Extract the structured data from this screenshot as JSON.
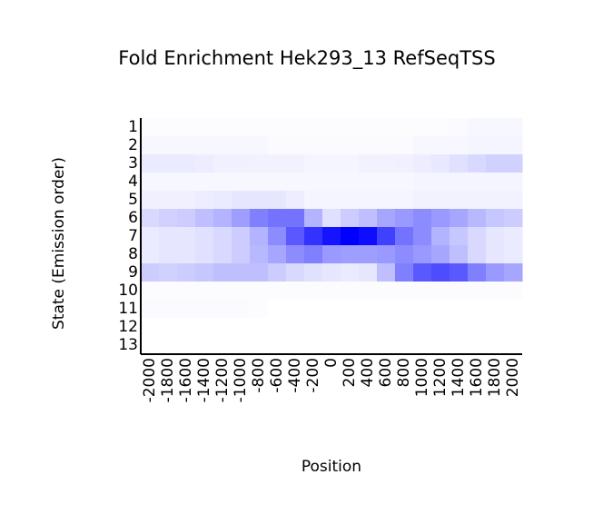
{
  "chart_data": {
    "type": "heatmap",
    "title": "Fold Enrichment Hek293_13 RefSeqTSS",
    "x_label": "Position",
    "y_label": "State (Emission order)",
    "color": "#0000ff",
    "categories": [
      -2000,
      -1800,
      -1600,
      -1400,
      -1200,
      -1000,
      -800,
      -600,
      -400,
      -200,
      0,
      200,
      400,
      600,
      800,
      1000,
      1200,
      1400,
      1600,
      1800,
      2000
    ],
    "rows": [
      1,
      2,
      3,
      4,
      5,
      6,
      7,
      8,
      9,
      10,
      11,
      12,
      13
    ],
    "values": [
      [
        0.01,
        0.01,
        0.01,
        0.01,
        0.01,
        0.01,
        0.01,
        0.01,
        0.01,
        0.01,
        0.01,
        0.01,
        0.01,
        0.01,
        0.01,
        0.01,
        0.01,
        0.02,
        0.03,
        0.03,
        0.03
      ],
      [
        0.03,
        0.03,
        0.03,
        0.03,
        0.03,
        0.03,
        0.03,
        0.02,
        0.02,
        0.02,
        0.02,
        0.02,
        0.02,
        0.02,
        0.02,
        0.03,
        0.03,
        0.03,
        0.04,
        0.04,
        0.04
      ],
      [
        0.08,
        0.08,
        0.08,
        0.07,
        0.06,
        0.06,
        0.05,
        0.05,
        0.05,
        0.04,
        0.04,
        0.04,
        0.05,
        0.05,
        0.06,
        0.07,
        0.09,
        0.12,
        0.15,
        0.18,
        0.18
      ],
      [
        0.03,
        0.03,
        0.03,
        0.03,
        0.03,
        0.03,
        0.03,
        0.03,
        0.03,
        0.03,
        0.03,
        0.03,
        0.03,
        0.03,
        0.03,
        0.04,
        0.04,
        0.04,
        0.04,
        0.04,
        0.04
      ],
      [
        0.06,
        0.06,
        0.06,
        0.07,
        0.08,
        0.1,
        0.1,
        0.1,
        0.07,
        0.04,
        0.04,
        0.04,
        0.04,
        0.04,
        0.04,
        0.05,
        0.05,
        0.05,
        0.05,
        0.05,
        0.05
      ],
      [
        0.15,
        0.18,
        0.2,
        0.25,
        0.3,
        0.38,
        0.5,
        0.55,
        0.55,
        0.3,
        0.12,
        0.2,
        0.25,
        0.35,
        0.4,
        0.45,
        0.4,
        0.35,
        0.28,
        0.22,
        0.2
      ],
      [
        0.08,
        0.1,
        0.1,
        0.12,
        0.15,
        0.2,
        0.3,
        0.45,
        0.65,
        0.8,
        0.92,
        1.0,
        0.95,
        0.75,
        0.55,
        0.45,
        0.3,
        0.22,
        0.15,
        0.1,
        0.08
      ],
      [
        0.08,
        0.1,
        0.1,
        0.12,
        0.15,
        0.2,
        0.28,
        0.35,
        0.45,
        0.5,
        0.4,
        0.38,
        0.38,
        0.4,
        0.45,
        0.4,
        0.35,
        0.25,
        0.15,
        0.1,
        0.08
      ],
      [
        0.2,
        0.18,
        0.2,
        0.22,
        0.25,
        0.25,
        0.25,
        0.2,
        0.15,
        0.12,
        0.1,
        0.08,
        0.1,
        0.25,
        0.5,
        0.65,
        0.7,
        0.65,
        0.5,
        0.4,
        0.35
      ],
      [
        0.01,
        0.01,
        0.01,
        0.01,
        0.01,
        0.01,
        0.01,
        0.01,
        0.01,
        0.01,
        0.01,
        0.01,
        0.01,
        0.01,
        0.01,
        0.01,
        0.01,
        0.01,
        0.01,
        0.01,
        0.01
      ],
      [
        0.02,
        0.02,
        0.02,
        0.02,
        0.02,
        0.02,
        0.01,
        0.0,
        0.0,
        0.0,
        0.0,
        0.0,
        0.0,
        0.0,
        0.0,
        0.0,
        0.0,
        0.0,
        0.0,
        0.0,
        0.0
      ],
      [
        0,
        0,
        0,
        0,
        0,
        0,
        0,
        0,
        0,
        0,
        0,
        0,
        0,
        0,
        0,
        0,
        0,
        0,
        0,
        0,
        0
      ],
      [
        0,
        0,
        0,
        0,
        0,
        0,
        0,
        0,
        0,
        0,
        0,
        0,
        0,
        0,
        0,
        0,
        0,
        0,
        0,
        0,
        0
      ]
    ]
  }
}
